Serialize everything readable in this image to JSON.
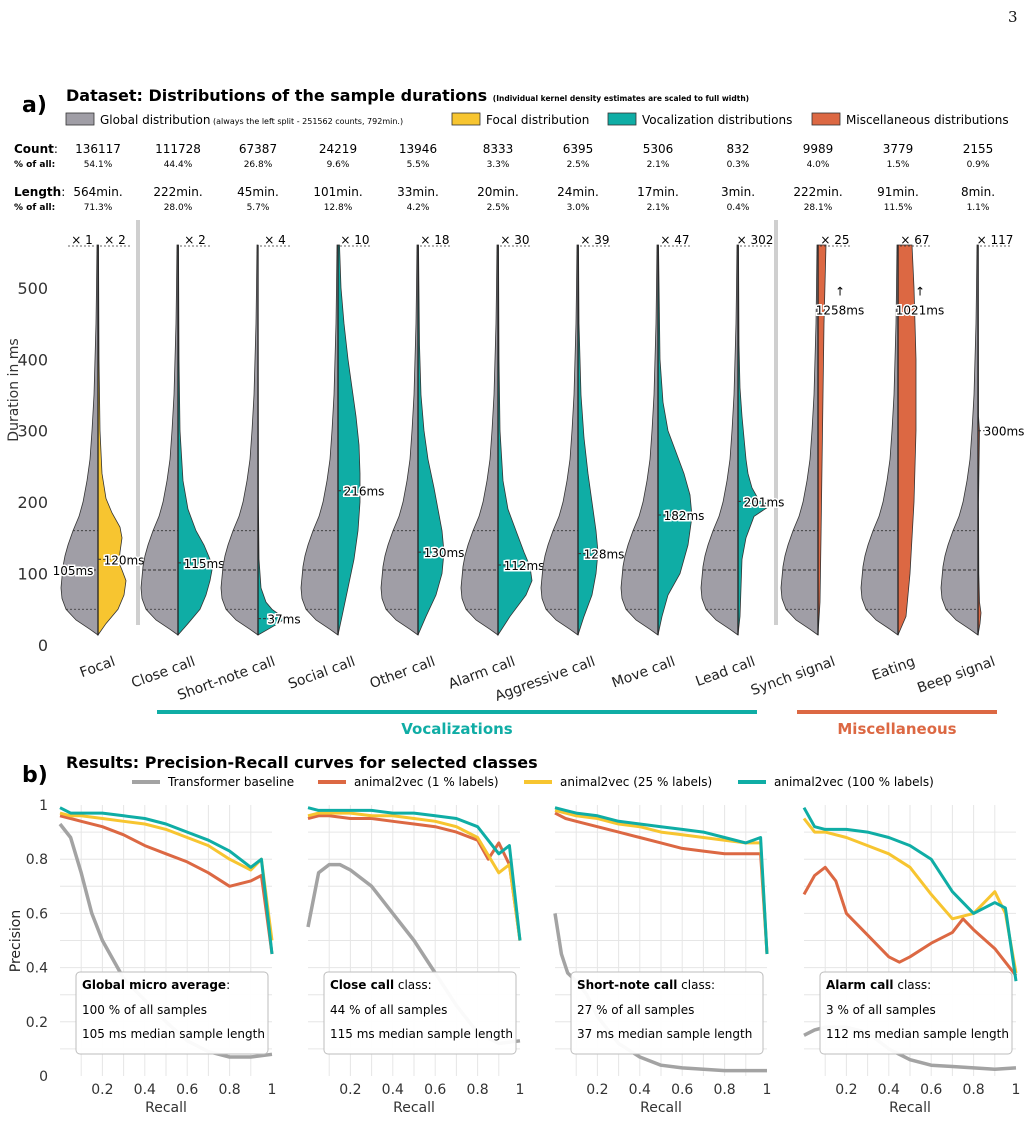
{
  "page_number": "3",
  "panel_a": {
    "letter": "a)",
    "title": "Dataset: Distributions of the sample durations",
    "title_note": "(Individual kernel density estimates are scaled to full width)",
    "legend": [
      {
        "label": "Global distribution",
        "note": "(always the left split - 251562 counts, 792min.)",
        "color": "#a09ea6"
      },
      {
        "label": "Focal distribution",
        "note": "",
        "color": "#f7c530"
      },
      {
        "label": "Vocalization distributions",
        "note": "",
        "color": "#0fada5"
      },
      {
        "label": "Miscellaneous distributions",
        "note": "",
        "color": "#dc6843"
      }
    ],
    "row_count_label": "Count",
    "row_count_pct_label": "% of all",
    "row_length_label": "Length",
    "row_length_pct_label": "% of all",
    "y_label": "Duration in ms",
    "y_ticks": [
      "0",
      "100",
      "200",
      "300",
      "400",
      "500"
    ],
    "group_vocalizations": "Vocalizations",
    "group_misc": "Miscellaneous",
    "columns": [
      {
        "name": "Focal",
        "count": "136117",
        "count_pct": "54.1%",
        "length": "564min.",
        "length_pct": "71.3%",
        "scale_left": "× 1",
        "scale_right": "× 2",
        "median_label": "120ms",
        "global_label": "105ms",
        "median": 120,
        "kind": "focal"
      },
      {
        "name": "Close call",
        "count": "111728",
        "count_pct": "44.4%",
        "length": "222min.",
        "length_pct": "28.0%",
        "scale_left": "",
        "scale_right": "× 2",
        "median_label": "115ms",
        "median": 115,
        "kind": "voc"
      },
      {
        "name": "Short-note call",
        "count": "67387",
        "count_pct": "26.8%",
        "length": "45min.",
        "length_pct": "5.7%",
        "scale_left": "",
        "scale_right": "× 4",
        "median_label": "37ms",
        "median": 37,
        "kind": "voc"
      },
      {
        "name": "Social call",
        "count": "24219",
        "count_pct": "9.6%",
        "length": "101min.",
        "length_pct": "12.8%",
        "scale_left": "",
        "scale_right": "× 10",
        "median_label": "216ms",
        "median": 216,
        "kind": "voc"
      },
      {
        "name": "Other call",
        "count": "13946",
        "count_pct": "5.5%",
        "length": "33min.",
        "length_pct": "4.2%",
        "scale_left": "",
        "scale_right": "× 18",
        "median_label": "130ms",
        "median": 130,
        "kind": "voc"
      },
      {
        "name": "Alarm call",
        "count": "8333",
        "count_pct": "3.3%",
        "length": "20min.",
        "length_pct": "2.5%",
        "scale_left": "",
        "scale_right": "× 30",
        "median_label": "112ms",
        "median": 112,
        "kind": "voc"
      },
      {
        "name": "Aggressive call",
        "count": "6395",
        "count_pct": "2.5%",
        "length": "24min.",
        "length_pct": "3.0%",
        "scale_left": "",
        "scale_right": "× 39",
        "median_label": "128ms",
        "median": 128,
        "kind": "voc"
      },
      {
        "name": "Move call",
        "count": "5306",
        "count_pct": "2.1%",
        "length": "17min.",
        "length_pct": "2.1%",
        "scale_left": "",
        "scale_right": "× 47",
        "median_label": "182ms",
        "median": 182,
        "kind": "voc"
      },
      {
        "name": "Lead call",
        "count": "832",
        "count_pct": "0.3%",
        "length": "3min.",
        "length_pct": "0.4%",
        "scale_left": "",
        "scale_right": "× 302",
        "median_label": "201ms",
        "median": 201,
        "kind": "voc"
      },
      {
        "name": "Synch signal",
        "count": "9989",
        "count_pct": "4.0%",
        "length": "222min.",
        "length_pct": "28.1%",
        "scale_left": "",
        "scale_right": "× 25",
        "median_label": "1258ms",
        "median": 1258,
        "kind": "misc"
      },
      {
        "name": "Eating",
        "count": "3779",
        "count_pct": "1.5%",
        "length": "91min.",
        "length_pct": "11.5%",
        "scale_left": "",
        "scale_right": "× 67",
        "median_label": "1021ms",
        "median": 1021,
        "kind": "misc"
      },
      {
        "name": "Beep signal",
        "count": "2155",
        "count_pct": "0.9%",
        "length": "8min.",
        "length_pct": "1.1%",
        "scale_left": "",
        "scale_right": "× 117",
        "median_label": "300ms",
        "median": 300,
        "kind": "misc"
      }
    ]
  },
  "panel_b": {
    "letter": "b)",
    "title": "Results: Precision-Recall curves for selected classes",
    "y_label": "Precision",
    "x_label": "Recall",
    "y_ticks": [
      "0",
      "0.2",
      "0.4",
      "0.6",
      "0.8",
      "1"
    ],
    "x_ticks": [
      "0.2",
      "0.4",
      "0.6",
      "0.8",
      "1"
    ],
    "legend": [
      {
        "label": "Transformer baseline",
        "color": "#a3a3a3"
      },
      {
        "label": "animal2vec (1 % labels)",
        "color": "#dc6843"
      },
      {
        "label": "animal2vec (25 % labels)",
        "color": "#f7c530"
      },
      {
        "label": "animal2vec (100 % labels)",
        "color": "#0fada5"
      }
    ],
    "subplots": [
      {
        "class_name": "Global micro average",
        "class_suffix": ":",
        "line2": "100 % of all samples",
        "line3": "105 ms median sample length"
      },
      {
        "class_name": "Close call",
        "class_suffix": " class:",
        "line2": "44 % of all samples",
        "line3": "115 ms median sample length"
      },
      {
        "class_name": "Short-note call",
        "class_suffix": " class:",
        "line2": "27 % of all samples",
        "line3": "37 ms median sample length"
      },
      {
        "class_name": "Alarm call",
        "class_suffix": " class:",
        "line2": "3 % of all samples",
        "line3": "112 ms median sample length"
      }
    ]
  },
  "chart_data": [
    {
      "type": "violin",
      "title": "Dataset: Distributions of the sample durations",
      "ylabel": "Duration in ms",
      "ylim": [
        0,
        560
      ],
      "categories": [
        "Focal",
        "Close call",
        "Short-note call",
        "Social call",
        "Other call",
        "Alarm call",
        "Aggressive call",
        "Move call",
        "Lead call",
        "Synch signal",
        "Eating",
        "Beep signal"
      ],
      "global_median_ms": 105,
      "medians_ms": [
        120,
        115,
        37,
        216,
        130,
        112,
        128,
        182,
        201,
        1258,
        1021,
        300
      ],
      "counts": [
        136117,
        111728,
        67387,
        24219,
        13946,
        8333,
        6395,
        5306,
        832,
        9989,
        3779,
        2155
      ]
    },
    {
      "type": "line",
      "title": "Global micro average",
      "xlabel": "Recall",
      "ylabel": "Precision",
      "xlim": [
        0,
        1
      ],
      "ylim": [
        0,
        1
      ],
      "series": [
        {
          "name": "Transformer baseline",
          "x": [
            0,
            0.05,
            0.1,
            0.15,
            0.2,
            0.3,
            0.4,
            0.5,
            0.6,
            0.7,
            0.8,
            0.9,
            1.0
          ],
          "y": [
            0.93,
            0.88,
            0.75,
            0.6,
            0.5,
            0.36,
            0.28,
            0.2,
            0.13,
            0.09,
            0.07,
            0.07,
            0.08
          ]
        },
        {
          "name": "animal2vec (1 % labels)",
          "x": [
            0,
            0.05,
            0.1,
            0.2,
            0.3,
            0.4,
            0.5,
            0.6,
            0.7,
            0.8,
            0.9,
            0.95,
            1.0
          ],
          "y": [
            0.96,
            0.95,
            0.94,
            0.92,
            0.89,
            0.85,
            0.82,
            0.79,
            0.75,
            0.7,
            0.72,
            0.74,
            0.45
          ]
        },
        {
          "name": "animal2vec (25 % labels)",
          "x": [
            0,
            0.05,
            0.1,
            0.2,
            0.3,
            0.4,
            0.5,
            0.6,
            0.7,
            0.8,
            0.9,
            0.95,
            1.0
          ],
          "y": [
            0.97,
            0.96,
            0.96,
            0.95,
            0.94,
            0.93,
            0.91,
            0.88,
            0.85,
            0.8,
            0.76,
            0.8,
            0.5
          ]
        },
        {
          "name": "animal2vec (100 % labels)",
          "x": [
            0,
            0.05,
            0.1,
            0.2,
            0.3,
            0.4,
            0.5,
            0.6,
            0.7,
            0.8,
            0.9,
            0.95,
            1.0
          ],
          "y": [
            0.99,
            0.97,
            0.97,
            0.97,
            0.96,
            0.95,
            0.93,
            0.9,
            0.87,
            0.83,
            0.77,
            0.8,
            0.45
          ]
        }
      ]
    },
    {
      "type": "line",
      "title": "Close call",
      "xlabel": "Recall",
      "ylabel": "Precision",
      "xlim": [
        0,
        1
      ],
      "ylim": [
        0,
        1
      ],
      "series": [
        {
          "name": "Transformer baseline",
          "x": [
            0,
            0.05,
            0.1,
            0.15,
            0.2,
            0.3,
            0.4,
            0.5,
            0.6,
            0.7,
            0.8,
            0.9,
            1.0
          ],
          "y": [
            0.55,
            0.75,
            0.78,
            0.78,
            0.76,
            0.7,
            0.6,
            0.5,
            0.38,
            0.26,
            0.16,
            0.12,
            0.13
          ]
        },
        {
          "name": "animal2vec (1 % labels)",
          "x": [
            0,
            0.05,
            0.1,
            0.2,
            0.3,
            0.4,
            0.5,
            0.6,
            0.7,
            0.8,
            0.85,
            0.9,
            0.95,
            1.0
          ],
          "y": [
            0.95,
            0.96,
            0.96,
            0.95,
            0.95,
            0.94,
            0.93,
            0.92,
            0.9,
            0.87,
            0.8,
            0.86,
            0.78,
            0.5
          ]
        },
        {
          "name": "animal2vec (25 % labels)",
          "x": [
            0,
            0.05,
            0.1,
            0.2,
            0.3,
            0.4,
            0.5,
            0.6,
            0.7,
            0.8,
            0.9,
            0.95,
            1.0
          ],
          "y": [
            0.96,
            0.97,
            0.97,
            0.97,
            0.96,
            0.96,
            0.95,
            0.94,
            0.92,
            0.88,
            0.75,
            0.78,
            0.5
          ]
        },
        {
          "name": "animal2vec (100 % labels)",
          "x": [
            0,
            0.05,
            0.1,
            0.2,
            0.3,
            0.4,
            0.5,
            0.6,
            0.7,
            0.8,
            0.9,
            0.95,
            1.0
          ],
          "y": [
            0.99,
            0.98,
            0.98,
            0.98,
            0.98,
            0.97,
            0.97,
            0.96,
            0.95,
            0.92,
            0.82,
            0.85,
            0.5
          ]
        }
      ]
    },
    {
      "type": "line",
      "title": "Short-note call",
      "xlabel": "Recall",
      "ylabel": "Precision",
      "xlim": [
        0,
        1
      ],
      "ylim": [
        0,
        1
      ],
      "series": [
        {
          "name": "Transformer baseline",
          "x": [
            0,
            0.03,
            0.06,
            0.1,
            0.15,
            0.2,
            0.3,
            0.4,
            0.5,
            0.6,
            0.7,
            0.8,
            0.9,
            1.0
          ],
          "y": [
            0.6,
            0.45,
            0.38,
            0.35,
            0.3,
            0.22,
            0.12,
            0.07,
            0.04,
            0.03,
            0.025,
            0.02,
            0.02,
            0.02
          ]
        },
        {
          "name": "animal2vec (1 % labels)",
          "x": [
            0,
            0.05,
            0.1,
            0.2,
            0.3,
            0.4,
            0.5,
            0.6,
            0.7,
            0.8,
            0.9,
            0.97,
            1.0
          ],
          "y": [
            0.97,
            0.95,
            0.94,
            0.92,
            0.9,
            0.88,
            0.86,
            0.84,
            0.83,
            0.82,
            0.82,
            0.82,
            0.45
          ]
        },
        {
          "name": "animal2vec (25 % labels)",
          "x": [
            0,
            0.05,
            0.1,
            0.2,
            0.3,
            0.4,
            0.5,
            0.6,
            0.7,
            0.8,
            0.9,
            0.97,
            1.0
          ],
          "y": [
            0.98,
            0.97,
            0.96,
            0.95,
            0.93,
            0.92,
            0.9,
            0.89,
            0.88,
            0.87,
            0.86,
            0.86,
            0.45
          ]
        },
        {
          "name": "animal2vec (100 % labels)",
          "x": [
            0,
            0.05,
            0.1,
            0.2,
            0.3,
            0.4,
            0.5,
            0.6,
            0.7,
            0.8,
            0.9,
            0.97,
            1.0
          ],
          "y": [
            0.99,
            0.98,
            0.97,
            0.96,
            0.94,
            0.93,
            0.92,
            0.91,
            0.9,
            0.88,
            0.86,
            0.88,
            0.45
          ]
        }
      ]
    },
    {
      "type": "line",
      "title": "Alarm call",
      "xlabel": "Recall",
      "ylabel": "Precision",
      "xlim": [
        0,
        1
      ],
      "ylim": [
        0,
        1
      ],
      "series": [
        {
          "name": "Transformer baseline",
          "x": [
            0,
            0.05,
            0.1,
            0.2,
            0.3,
            0.4,
            0.5,
            0.6,
            0.7,
            0.8,
            0.9,
            1.0
          ],
          "y": [
            0.15,
            0.17,
            0.18,
            0.18,
            0.16,
            0.1,
            0.06,
            0.04,
            0.035,
            0.03,
            0.025,
            0.03
          ]
        },
        {
          "name": "animal2vec (1 % labels)",
          "x": [
            0,
            0.05,
            0.1,
            0.15,
            0.2,
            0.3,
            0.4,
            0.45,
            0.5,
            0.6,
            0.7,
            0.75,
            0.8,
            0.9,
            1.0
          ],
          "y": [
            0.67,
            0.74,
            0.77,
            0.72,
            0.6,
            0.52,
            0.44,
            0.42,
            0.44,
            0.49,
            0.53,
            0.58,
            0.54,
            0.47,
            0.37
          ]
        },
        {
          "name": "animal2vec (25 % labels)",
          "x": [
            0,
            0.05,
            0.1,
            0.2,
            0.3,
            0.4,
            0.5,
            0.6,
            0.7,
            0.8,
            0.9,
            0.95,
            1.0
          ],
          "y": [
            0.95,
            0.9,
            0.9,
            0.88,
            0.85,
            0.82,
            0.77,
            0.67,
            0.58,
            0.6,
            0.68,
            0.6,
            0.38
          ]
        },
        {
          "name": "animal2vec (100 % labels)",
          "x": [
            0,
            0.05,
            0.1,
            0.2,
            0.3,
            0.4,
            0.5,
            0.6,
            0.7,
            0.8,
            0.9,
            0.95,
            1.0
          ],
          "y": [
            0.99,
            0.92,
            0.91,
            0.91,
            0.9,
            0.88,
            0.85,
            0.8,
            0.68,
            0.6,
            0.64,
            0.62,
            0.35
          ]
        }
      ]
    }
  ]
}
